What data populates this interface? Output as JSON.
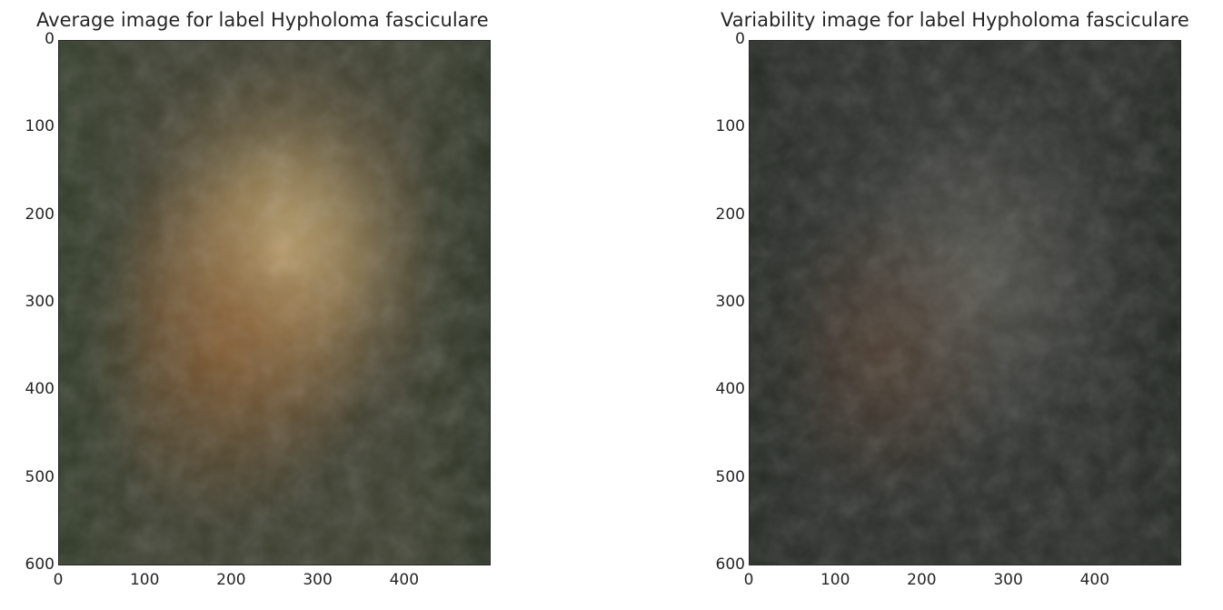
{
  "chart_data": [
    {
      "type": "heatmap",
      "title": "Average image for label Hypholoma fasciculare",
      "xlabel": "",
      "ylabel": "",
      "xlim": [
        0,
        500
      ],
      "ylim": [
        600,
        0
      ],
      "x_ticks": [
        0,
        100,
        200,
        300,
        400
      ],
      "y_ticks": [
        0,
        100,
        200,
        300,
        400,
        500,
        600
      ],
      "grid": false,
      "palette": {
        "base": "#3d3f30",
        "glow": "#c8b07a",
        "warm": "#8a5a2c",
        "edge": "#2f3a27"
      }
    },
    {
      "type": "heatmap",
      "title": "Variability image for label Hypholoma fasciculare",
      "xlabel": "",
      "ylabel": "",
      "xlim": [
        0,
        500
      ],
      "ylim": [
        600,
        0
      ],
      "x_ticks": [
        0,
        100,
        200,
        300,
        400
      ],
      "y_ticks": [
        0,
        100,
        200,
        300,
        400,
        500,
        600
      ],
      "grid": false,
      "palette": {
        "base": "#2c2f2c",
        "glow": "#5a5a52",
        "warm": "#5a3f2c",
        "edge": "#262b24"
      }
    }
  ]
}
